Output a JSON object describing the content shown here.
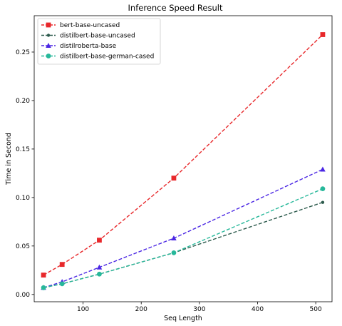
{
  "chart_data": {
    "type": "line",
    "title": "Inference Speed Result",
    "xlabel": "Seq Length",
    "ylabel": "Time in Second",
    "xlim": [
      16,
      528
    ],
    "ylim": [
      -0.0075,
      0.2875
    ],
    "xticks": [
      100,
      200,
      300,
      400,
      500
    ],
    "yticks": [
      0.0,
      0.05,
      0.1,
      0.15,
      0.2,
      0.25
    ],
    "ytick_labels": [
      "0.00",
      "0.05",
      "0.10",
      "0.15",
      "0.20",
      "0.25"
    ],
    "grid": false,
    "legend_position": "top-left",
    "x": [
      32,
      64,
      128,
      256,
      512
    ],
    "series": [
      {
        "name": "bert-base-uncased",
        "color": "#e8282b",
        "marker": "square",
        "values": [
          0.02,
          0.031,
          0.056,
          0.12,
          0.268
        ]
      },
      {
        "name": "distilbert-base-uncased",
        "color": "#2c5a4c",
        "marker": "circle-small",
        "values": [
          0.007,
          0.011,
          0.021,
          0.043,
          0.095
        ]
      },
      {
        "name": "distilroberta-base",
        "color": "#4b27e4",
        "marker": "triangle",
        "values": [
          0.007,
          0.013,
          0.028,
          0.058,
          0.129
        ]
      },
      {
        "name": "distilbert-base-german-cased",
        "color": "#27b89a",
        "marker": "circle",
        "values": [
          0.007,
          0.011,
          0.021,
          0.043,
          0.109
        ]
      }
    ]
  }
}
